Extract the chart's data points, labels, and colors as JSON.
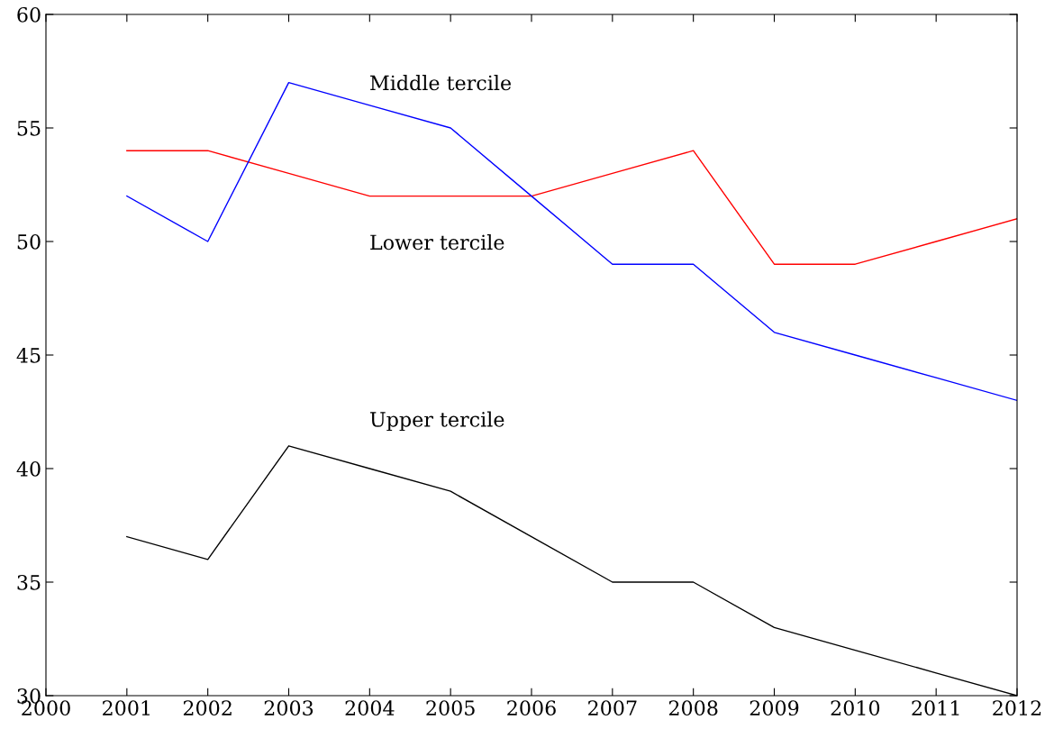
{
  "chart_data": {
    "type": "line",
    "x": [
      2001,
      2002,
      2003,
      2004,
      2005,
      2006,
      2007,
      2008,
      2009,
      2010,
      2011,
      2012
    ],
    "series": [
      {
        "color": "#ff0000",
        "values": [
          54,
          54,
          53,
          52,
          52,
          52,
          53,
          54,
          49,
          49,
          50,
          51
        ]
      },
      {
        "color": "#0000ff",
        "values": [
          52,
          50,
          57,
          56,
          55,
          52,
          49,
          49,
          46,
          45,
          44,
          43
        ]
      },
      {
        "color": "#000000",
        "values": [
          37,
          36,
          41,
          40,
          39,
          37,
          35,
          35,
          33,
          32,
          31,
          30
        ]
      }
    ],
    "annotations": [
      "Middle tercile",
      "Lower tercile",
      "Upper tercile"
    ],
    "xlim": [
      2000,
      2012
    ],
    "ylim": [
      30,
      60
    ],
    "xticks": [
      2000,
      2001,
      2002,
      2003,
      2004,
      2005,
      2006,
      2007,
      2008,
      2009,
      2010,
      2011,
      2012
    ],
    "yticks": [
      30,
      35,
      40,
      45,
      50,
      55,
      60
    ],
    "grid": false,
    "legend": false,
    "marker": "none",
    "line_style": "solid"
  }
}
